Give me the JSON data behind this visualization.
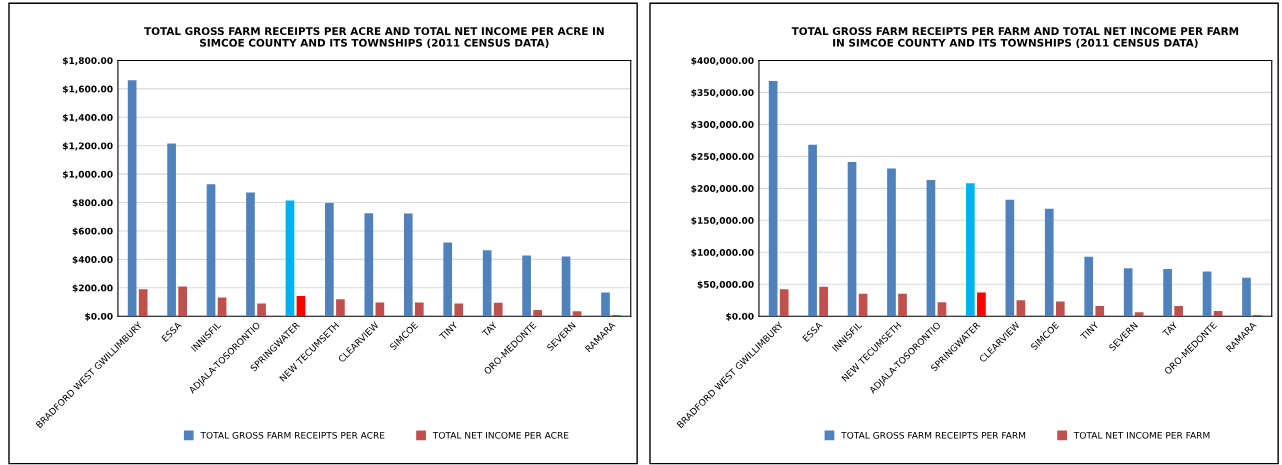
{
  "chart_data": [
    {
      "type": "bar",
      "title": "TOTAL GROSS FARM RECEIPTS PER ACRE AND TOTAL NET INCOME PER ACRE IN SIMCOE COUNTY AND ITS TOWNSHIPS (2011 CENSUS DATA)",
      "categories": [
        "BRADFORD WEST GWILLIMBURY",
        "ESSA",
        "INNISFIL",
        "ADJALA-TOSORONTIO",
        "SPRINGWATER",
        "NEW TECUMSETH",
        "CLEARVIEW",
        "SIMCOE",
        "TINY",
        "TAY",
        "ORO-MEDONTE",
        "SEVERN",
        "RAMARA"
      ],
      "series": [
        {
          "name": "TOTAL GROSS FARM RECEIPTS PER ACRE",
          "color": "#4f81bd",
          "colors": [
            "#4f81bd",
            "#4f81bd",
            "#4f81bd",
            "#4f81bd",
            "#00b0f0",
            "#4f81bd",
            "#4f81bd",
            "#4f81bd",
            "#4f81bd",
            "#4f81bd",
            "#4f81bd",
            "#4f81bd",
            "#4f81bd"
          ],
          "values": [
            1660,
            1215,
            928,
            871,
            814,
            797,
            725,
            722,
            519,
            464,
            427,
            421,
            166
          ]
        },
        {
          "name": "TOTAL NET INCOME PER ACRE",
          "color": "#c0504d",
          "colors": [
            "#c0504d",
            "#c0504d",
            "#c0504d",
            "#c0504d",
            "#ff0000",
            "#c0504d",
            "#c0504d",
            "#c0504d",
            "#c0504d",
            "#c0504d",
            "#c0504d",
            "#c0504d",
            "#c0504d"
          ],
          "values": [
            189,
            209,
            132,
            89,
            143,
            120,
            97,
            97,
            89,
            95,
            43,
            34,
            9
          ]
        }
      ],
      "ylim": [
        0,
        1800
      ],
      "yticks": [
        {
          "value": 0,
          "label": "$0.00"
        },
        {
          "value": 200,
          "label": "$200.00"
        },
        {
          "value": 400,
          "label": "$400.00"
        },
        {
          "value": 600,
          "label": "$600.00"
        },
        {
          "value": 800,
          "label": "$800.00"
        },
        {
          "value": 1000,
          "label": "$1,000.00"
        },
        {
          "value": 1200,
          "label": "$1,200.00"
        },
        {
          "value": 1400,
          "label": "$1,400.00"
        },
        {
          "value": 1600,
          "label": "$1,600.00"
        },
        {
          "value": 1800,
          "label": "$1,800.00"
        }
      ],
      "grid": "y",
      "legend": "bottom"
    },
    {
      "type": "bar",
      "title": "TOTAL GROSS FARM RECEIPTS PER FARM AND TOTAL NET INCOME PER FARM IN SIMCOE COUNTY AND ITS TOWNSHIPS (2011 CENSUS DATA)",
      "categories": [
        "BRADFORD WEST GWILLIMBURY",
        "ESSA",
        "INNISFIL",
        "NEW TECUMSETH",
        "ADJALA-TOSORONTIO",
        "SPRINGWATER",
        "CLEARVIEW",
        "SIMCOE",
        "TINY",
        "SEVERN",
        "TAY",
        "ORO-MEDONTE",
        "RAMARA"
      ],
      "series": [
        {
          "name": "TOTAL GROSS FARM RECEIPTS PER FARM",
          "color": "#4f81bd",
          "colors": [
            "#4f81bd",
            "#4f81bd",
            "#4f81bd",
            "#4f81bd",
            "#4f81bd",
            "#00b0f0",
            "#4f81bd",
            "#4f81bd",
            "#4f81bd",
            "#4f81bd",
            "#4f81bd",
            "#4f81bd",
            "#4f81bd"
          ],
          "values": [
            368000,
            268000,
            241000,
            231000,
            213000,
            208000,
            182000,
            168000,
            93000,
            75000,
            74000,
            70000,
            60000
          ]
        },
        {
          "name": "TOTAL NET INCOME PER FARM",
          "color": "#c0504d",
          "colors": [
            "#c0504d",
            "#c0504d",
            "#c0504d",
            "#c0504d",
            "#c0504d",
            "#ff0000",
            "#c0504d",
            "#c0504d",
            "#c0504d",
            "#c0504d",
            "#c0504d",
            "#c0504d",
            "#c0504d"
          ],
          "values": [
            42000,
            46000,
            35000,
            35000,
            22000,
            37000,
            25000,
            23000,
            16000,
            6000,
            16000,
            8000,
            2000
          ]
        }
      ],
      "ylim": [
        0,
        400000
      ],
      "yticks": [
        {
          "value": 0,
          "label": "$0.00"
        },
        {
          "value": 50000,
          "label": "$50,000.00"
        },
        {
          "value": 100000,
          "label": "$100,000.00"
        },
        {
          "value": 150000,
          "label": "$150,000.00"
        },
        {
          "value": 200000,
          "label": "$200,000.00"
        },
        {
          "value": 250000,
          "label": "$250,000.00"
        },
        {
          "value": 300000,
          "label": "$300,000.00"
        },
        {
          "value": 350000,
          "label": "$350,000.00"
        },
        {
          "value": 400000,
          "label": "$400,000.00"
        }
      ],
      "grid": "y",
      "legend": "bottom"
    }
  ]
}
